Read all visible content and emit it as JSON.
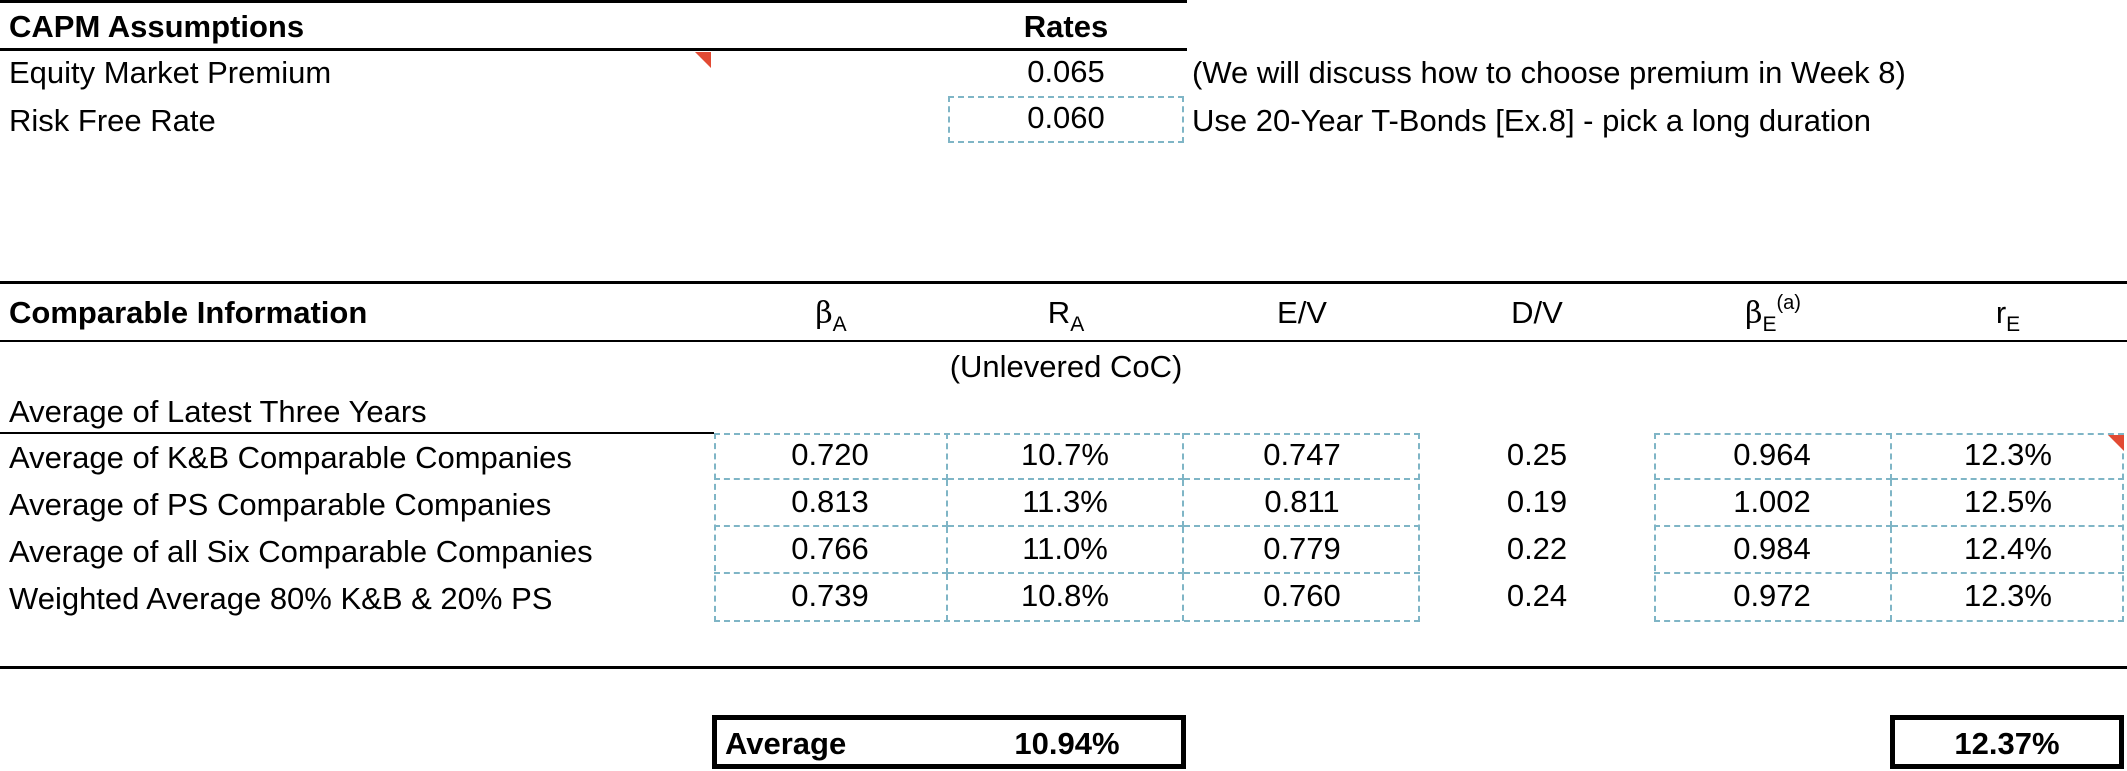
{
  "capm": {
    "title": "CAPM Assumptions",
    "rates_header": "Rates",
    "rows": [
      {
        "label": "Equity Market Premium",
        "value": "0.065",
        "note": "(We will discuss how to choose premium in Week 8)"
      },
      {
        "label": "Risk Free Rate",
        "value": "0.060",
        "note": "Use 20-Year T-Bonds [Ex.8] - pick a long duration"
      }
    ]
  },
  "comparable": {
    "title": "Comparable Information",
    "headers": {
      "beta_a": {
        "main": "β",
        "sub": "A"
      },
      "r_a": {
        "main": "R",
        "sub": "A"
      },
      "ev": "E/V",
      "dv": "D/V",
      "beta_e": {
        "main": "β",
        "sub": "E",
        "sup": "(a)"
      },
      "r_e": {
        "main": "r",
        "sub": "E"
      }
    },
    "r_a_caption": "(Unlevered CoC)",
    "section_label": "Average of Latest Three Years",
    "rows": [
      {
        "label": "Average of K&B Comparable Companies",
        "beta_a": "0.720",
        "r_a": "10.7%",
        "ev": "0.747",
        "dv": "0.25",
        "beta_e": "0.964",
        "r_e": "12.3%"
      },
      {
        "label": "Average of PS Comparable Companies",
        "beta_a": "0.813",
        "r_a": "11.3%",
        "ev": "0.811",
        "dv": "0.19",
        "beta_e": "1.002",
        "r_e": "12.5%"
      },
      {
        "label": "Average of all Six Comparable Companies",
        "beta_a": "0.766",
        "r_a": "11.0%",
        "ev": "0.779",
        "dv": "0.22",
        "beta_e": "0.984",
        "r_e": "12.4%"
      },
      {
        "label": "Weighted Average 80% K&B & 20% PS",
        "beta_a": "0.739",
        "r_a": "10.8%",
        "ev": "0.760",
        "dv": "0.24",
        "beta_e": "0.972",
        "r_e": "12.3%"
      }
    ]
  },
  "summary": {
    "average_label": "Average",
    "average_ra": "10.94%",
    "average_re": "12.37%"
  },
  "colors": {
    "dashed_border": "#7fb5c6",
    "comment_marker": "#e24a33"
  }
}
